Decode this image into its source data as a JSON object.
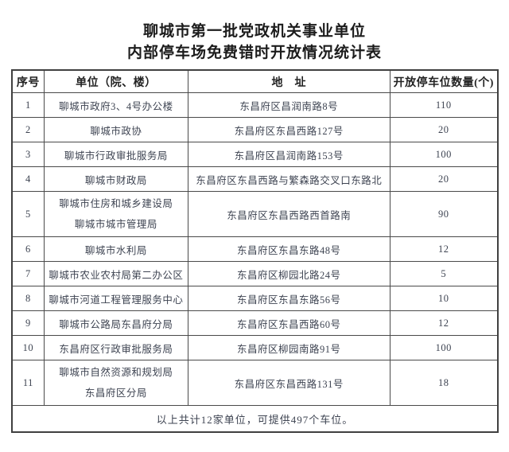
{
  "title": {
    "line1": "聊城市第一批党政机关事业单位",
    "line2": "内部停车场免费错时开放情况统计表"
  },
  "table": {
    "headers": [
      "序号",
      "单位（院、楼）",
      "地　址",
      "开放停车位数量(个)"
    ],
    "rows": [
      {
        "no": "1",
        "unit": [
          "聊城市政府3、4号办公楼"
        ],
        "address": "东昌府区昌润南路8号",
        "count": "110"
      },
      {
        "no": "2",
        "unit": [
          "聊城市政协"
        ],
        "address": "东昌府区东昌西路127号",
        "count": "20"
      },
      {
        "no": "3",
        "unit": [
          "聊城市行政审批服务局"
        ],
        "address": "东昌府区昌润南路153号",
        "count": "100"
      },
      {
        "no": "4",
        "unit": [
          "聊城市财政局"
        ],
        "address": "东昌府区东昌西路与繁森路交叉口东路北",
        "count": "20"
      },
      {
        "no": "5",
        "unit": [
          "聊城市住房和城乡建设局",
          "聊城市城市管理局"
        ],
        "address": "东昌府区东昌西路西首路南",
        "count": "90"
      },
      {
        "no": "6",
        "unit": [
          "聊城市水利局"
        ],
        "address": "东昌府区东昌东路48号",
        "count": "12"
      },
      {
        "no": "7",
        "unit": [
          "聊城市农业农村局第二办公区"
        ],
        "address": "东昌府区柳园北路24号",
        "count": "5"
      },
      {
        "no": "8",
        "unit": [
          "聊城市河道工程管理服务中心"
        ],
        "address": "东昌府区东昌东路56号",
        "count": "10"
      },
      {
        "no": "9",
        "unit": [
          "聊城市公路局东昌府分局"
        ],
        "address": "东昌府区东昌西路60号",
        "count": "12"
      },
      {
        "no": "10",
        "unit": [
          "东昌府区行政审批服务局"
        ],
        "address": "东昌府区柳园南路91号",
        "count": "100"
      },
      {
        "no": "11",
        "unit": [
          "聊城市自然资源和规划局",
          "东昌府区分局"
        ],
        "address": "东昌府区东昌西路131号",
        "count": "18"
      }
    ],
    "footer": "以上共计12家单位，可提供497个车位。"
  },
  "colors": {
    "background": "#ffffff",
    "border": "#404040",
    "title_text": "#1c1c1c",
    "cell_text": "#3e4452"
  }
}
